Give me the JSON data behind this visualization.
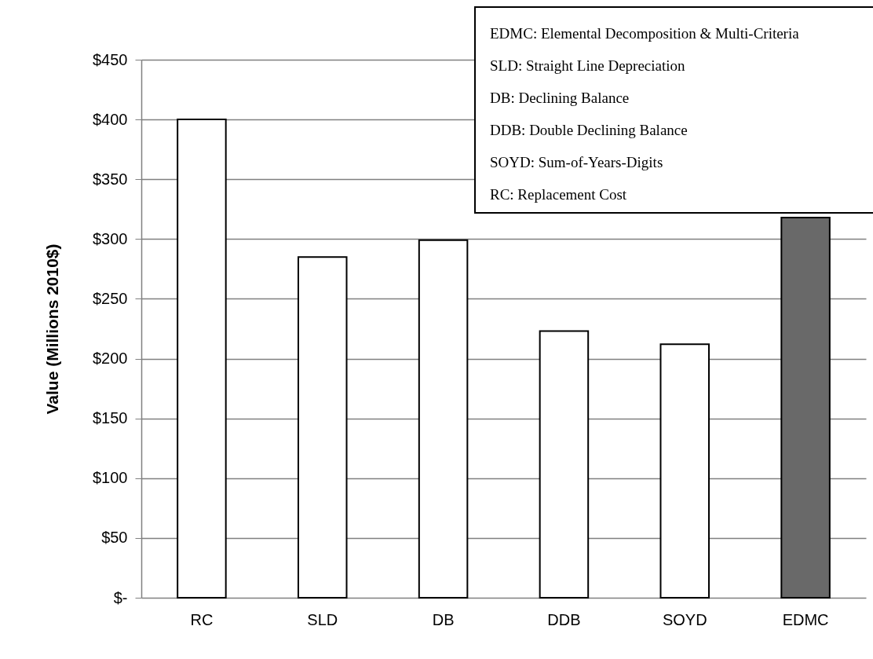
{
  "chart_data": {
    "type": "bar",
    "ylabel": "Value (Millions 2010$)",
    "categories": [
      "RC",
      "SLD",
      "DB",
      "DDB",
      "SOYD",
      "EDMC"
    ],
    "values": [
      400,
      285,
      299,
      223,
      212,
      318
    ],
    "colors": [
      "#ffffff",
      "#ffffff",
      "#ffffff",
      "#ffffff",
      "#ffffff",
      "#696969"
    ],
    "ylim": [
      0,
      450
    ],
    "yticks": [
      {
        "value": 0,
        "label": "$-"
      },
      {
        "value": 50,
        "label": "$50"
      },
      {
        "value": 100,
        "label": "$100"
      },
      {
        "value": 150,
        "label": "$150"
      },
      {
        "value": 200,
        "label": "$200"
      },
      {
        "value": 250,
        "label": "$250"
      },
      {
        "value": 300,
        "label": "$300"
      },
      {
        "value": 350,
        "label": "$350"
      },
      {
        "value": 400,
        "label": "$400"
      },
      {
        "value": 450,
        "label": "$450"
      }
    ],
    "grid": "y",
    "annotations": [
      "EDMC: Elemental Decomposition & Multi-Criteria",
      "SLD: Straight Line Depreciation",
      "DB: Declining Balance",
      "DDB: Double Declining Balance",
      "SOYD: Sum-of-Years-Digits",
      "RC: Replacement Cost"
    ]
  }
}
